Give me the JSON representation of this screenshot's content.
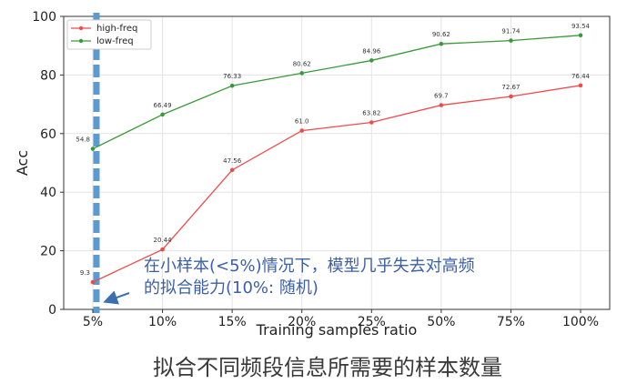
{
  "chart_data": {
    "type": "line",
    "categories": [
      "5%",
      "10%",
      "15%",
      "20%",
      "25%",
      "50%",
      "75%",
      "100%"
    ],
    "series": [
      {
        "name": "high-freq",
        "color": "#f04a4a",
        "values": [
          9.3,
          20.44,
          47.56,
          61.0,
          63.82,
          69.7,
          72.67,
          76.44
        ],
        "labels": [
          "9.3",
          "20.44",
          "47.56",
          "61.0",
          "63.82",
          "69.7",
          "72.67",
          "76.44"
        ]
      },
      {
        "name": "low-freq",
        "color": "#3a9a3a",
        "values": [
          54.8,
          66.49,
          76.33,
          80.62,
          84.96,
          90.62,
          91.74,
          93.54
        ],
        "labels": [
          "54.8",
          "66.49",
          "76.33",
          "80.62",
          "84.96",
          "90.62",
          "91.74",
          "93.54"
        ]
      }
    ],
    "xlabel": "Training samples ratio",
    "ylabel": "Acc",
    "ylim": [
      0,
      100
    ],
    "yticks": [
      0,
      20,
      40,
      60,
      80,
      100
    ],
    "grid": true,
    "legend_position": "top-left",
    "annotation_line": {
      "category": "5%",
      "color": "#5b9bd0"
    },
    "annotation_text": [
      "在小样本(<5%)情况下，模型几乎失去对高频",
      "的拟合能力(10%: 随机)"
    ]
  },
  "caption": "拟合不同频段信息所需要的样本数量"
}
